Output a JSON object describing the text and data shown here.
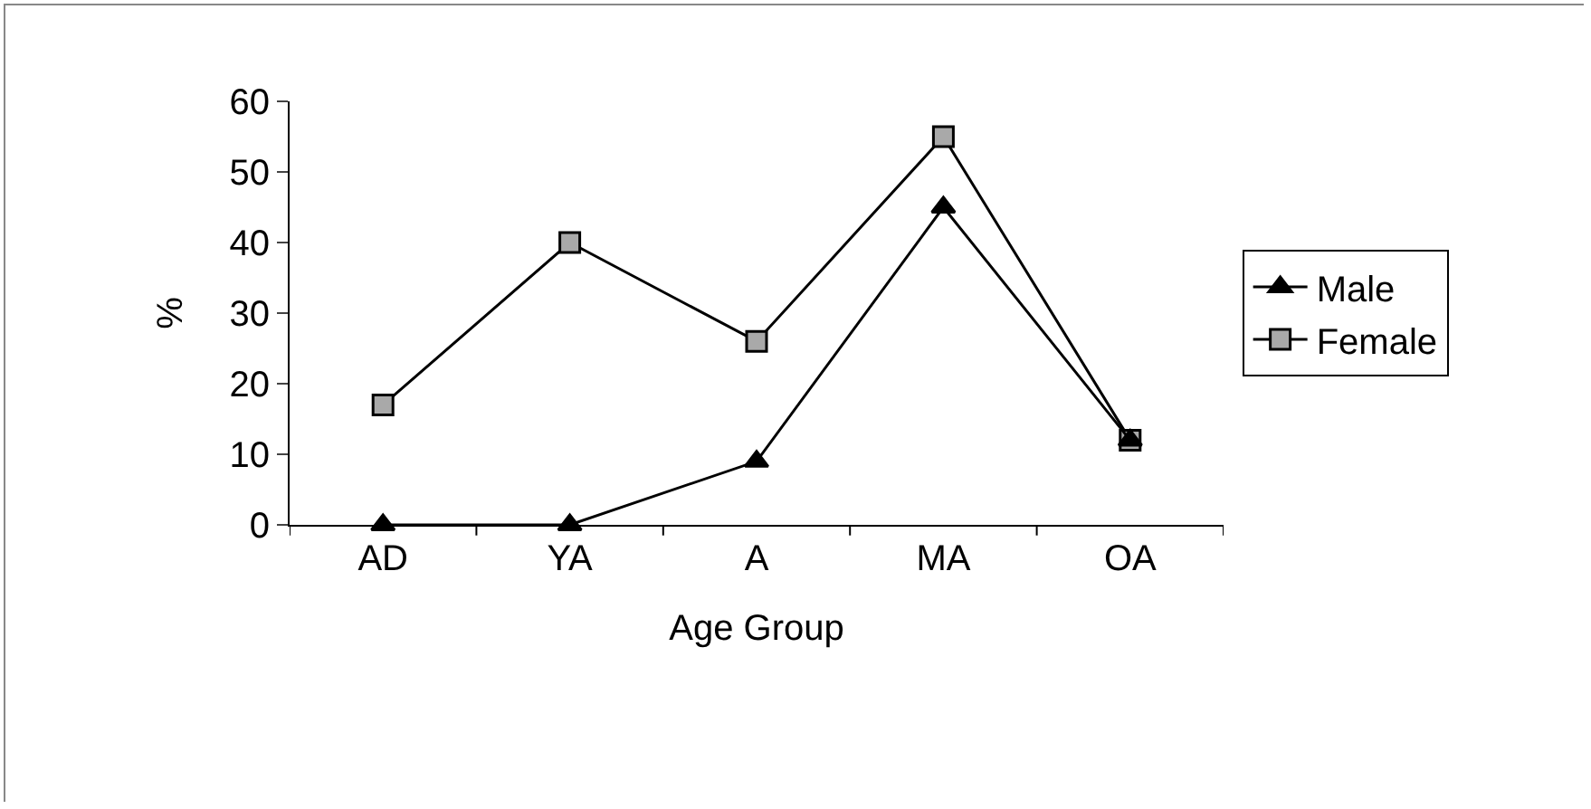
{
  "chart_data": {
    "type": "line",
    "xlabel": "Age Group",
    "ylabel": "%",
    "categories": [
      "AD",
      "YA",
      "A",
      "MA",
      "OA"
    ],
    "series": [
      {
        "name": "Male",
        "color": "#000000",
        "marker": "triangle",
        "values": [
          0,
          0,
          9,
          45,
          12
        ]
      },
      {
        "name": "Female",
        "color": "#a9a9a9",
        "marker": "square",
        "values": [
          17,
          40,
          26,
          55,
          12
        ]
      }
    ],
    "ylim": [
      0,
      60
    ],
    "yticks": [
      0,
      10,
      20,
      30,
      40,
      50,
      60
    ],
    "grid": false,
    "legend": "right",
    "line_style": "solid"
  }
}
